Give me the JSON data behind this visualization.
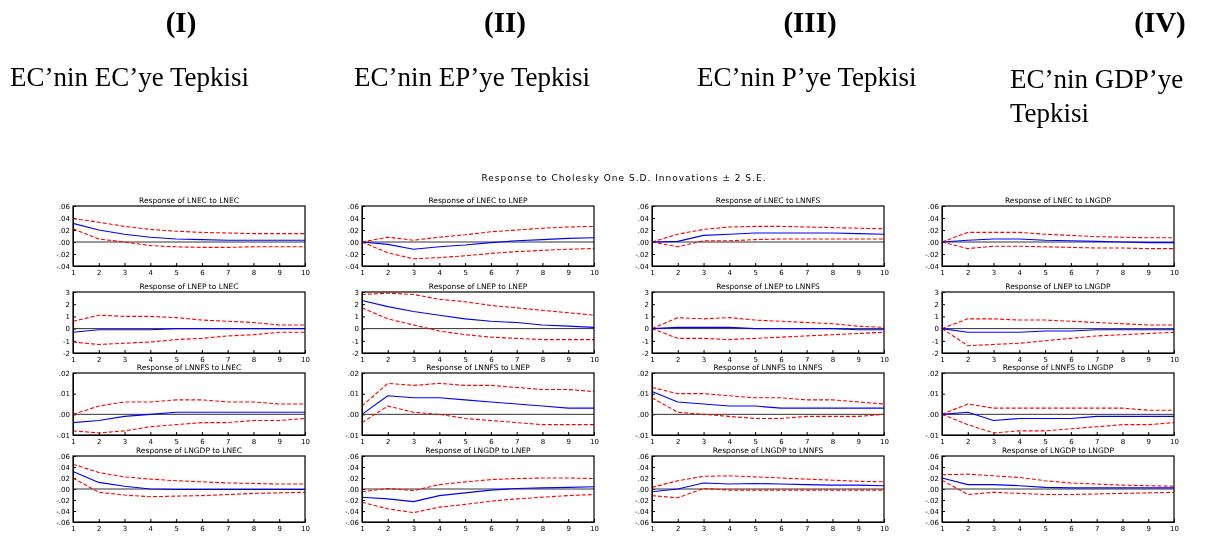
{
  "chart_data": [
    {
      "type": "other",
      "annotations": [
        "(I)",
        "(II)",
        "(III)",
        "(IV)",
        "EC’nin EC’ye Tepkisi",
        "EC’nin EP’ye Tepkisi",
        "EC’nin P’ye Tepkisi",
        "EC’nin GDP’ye Tepkisi",
        "Response to Cholesky One S.D. Innovations ± 2 S.E."
      ]
    },
    {
      "type": "line",
      "title": "Response of LNEC to LNEC",
      "x": [
        1,
        2,
        3,
        4,
        5,
        6,
        7,
        8,
        9,
        10
      ],
      "xlim": [
        1,
        10
      ],
      "xticks": [
        1,
        2,
        3,
        4,
        5,
        6,
        7,
        8,
        9,
        10
      ],
      "ylim": [
        -0.04,
        0.06
      ],
      "yticks": [
        {
          "value": -0.04,
          "label": "-.04"
        },
        {
          "value": -0.02,
          "label": "-.02"
        },
        {
          "value": 0,
          "label": ".00"
        },
        {
          "value": 0.02,
          "label": ".02"
        },
        {
          "value": 0.04,
          "label": ".04"
        },
        {
          "value": 0.06,
          "label": ".06"
        }
      ],
      "ref_lines": [
        {
          "axis": "y",
          "value": 0,
          "color": "#333333"
        }
      ],
      "series": [
        {
          "color": "#0000ff",
          "line_style": "solid",
          "values": [
            0.031,
            0.02,
            0.013,
            0.008,
            0.005,
            0.004,
            0.003,
            0.003,
            0.003,
            0.003
          ]
        },
        {
          "color": "#ff0000",
          "line_style": "dashed",
          "values": [
            0.039,
            0.033,
            0.026,
            0.021,
            0.018,
            0.016,
            0.015,
            0.014,
            0.014,
            0.014
          ]
        },
        {
          "color": "#ff0000",
          "line_style": "dashed",
          "values": [
            0.022,
            0.005,
            0,
            -0.006,
            -0.008,
            -0.009,
            -0.009,
            -0.008,
            -0.008,
            -0.008
          ]
        }
      ]
    },
    {
      "type": "line",
      "title": "Response of LNEC to LNEP",
      "x": [
        1,
        2,
        3,
        4,
        5,
        6,
        7,
        8,
        9,
        10
      ],
      "xlim": [
        1,
        10
      ],
      "xticks": [
        1,
        2,
        3,
        4,
        5,
        6,
        7,
        8,
        9,
        10
      ],
      "ylim": [
        -0.04,
        0.06
      ],
      "yticks": [
        {
          "value": -0.04,
          "label": "-.04"
        },
        {
          "value": -0.02,
          "label": "-.02"
        },
        {
          "value": 0,
          "label": ".00"
        },
        {
          "value": 0.02,
          "label": ".02"
        },
        {
          "value": 0.04,
          "label": ".04"
        },
        {
          "value": 0.06,
          "label": ".06"
        }
      ],
      "ref_lines": [
        {
          "axis": "y",
          "value": 0,
          "color": "#333333"
        }
      ],
      "series": [
        {
          "color": "#0000ff",
          "line_style": "solid",
          "values": [
            0,
            -0.004,
            -0.012,
            -0.008,
            -0.005,
            -0.001,
            0.002,
            0.004,
            0.006,
            0.007
          ]
        },
        {
          "color": "#ff0000",
          "line_style": "dashed",
          "values": [
            0,
            0.008,
            0.003,
            0.008,
            0.012,
            0.017,
            0.02,
            0.023,
            0.025,
            0.026
          ]
        },
        {
          "color": "#ff0000",
          "line_style": "dashed",
          "values": [
            0,
            -0.018,
            -0.028,
            -0.026,
            -0.023,
            -0.019,
            -0.016,
            -0.014,
            -0.012,
            -0.011
          ]
        }
      ]
    },
    {
      "type": "line",
      "title": "Response of LNEC to LNNFS",
      "x": [
        1,
        2,
        3,
        4,
        5,
        6,
        7,
        8,
        9,
        10
      ],
      "xlim": [
        1,
        10
      ],
      "xticks": [
        1,
        2,
        3,
        4,
        5,
        6,
        7,
        8,
        9,
        10
      ],
      "ylim": [
        -0.04,
        0.06
      ],
      "yticks": [
        {
          "value": -0.04,
          "label": "-.04"
        },
        {
          "value": -0.02,
          "label": "-.02"
        },
        {
          "value": 0,
          "label": ".00"
        },
        {
          "value": 0.02,
          "label": ".02"
        },
        {
          "value": 0.04,
          "label": ".04"
        },
        {
          "value": 0.06,
          "label": ".06"
        }
      ],
      "ref_lines": [
        {
          "axis": "y",
          "value": 0,
          "color": "#333333"
        }
      ],
      "series": [
        {
          "color": "#0000ff",
          "line_style": "solid",
          "values": [
            0,
            0.001,
            0.011,
            0.013,
            0.015,
            0.015,
            0.015,
            0.015,
            0.014,
            0.013
          ]
        },
        {
          "color": "#ff0000",
          "line_style": "dashed",
          "values": [
            0,
            0.013,
            0.021,
            0.025,
            0.026,
            0.026,
            0.025,
            0.024,
            0.023,
            0.022
          ]
        },
        {
          "color": "#ff0000",
          "line_style": "dashed",
          "values": [
            0,
            -0.008,
            0.002,
            0.002,
            0.004,
            0.005,
            0.005,
            0.005,
            0.005,
            0.005
          ]
        }
      ]
    },
    {
      "type": "line",
      "title": "Response of LNEC to LNGDP",
      "x": [
        1,
        2,
        3,
        4,
        5,
        6,
        7,
        8,
        9,
        10
      ],
      "xlim": [
        1,
        10
      ],
      "xticks": [
        1,
        2,
        3,
        4,
        5,
        6,
        7,
        8,
        9,
        10
      ],
      "ylim": [
        -0.04,
        0.06
      ],
      "yticks": [
        {
          "value": -0.04,
          "label": "-.04"
        },
        {
          "value": -0.02,
          "label": "-.02"
        },
        {
          "value": 0,
          "label": ".00"
        },
        {
          "value": 0.02,
          "label": ".02"
        },
        {
          "value": 0.04,
          "label": ".04"
        },
        {
          "value": 0.06,
          "label": ".06"
        }
      ],
      "ref_lines": [
        {
          "axis": "y",
          "value": 0,
          "color": "#333333"
        }
      ],
      "series": [
        {
          "color": "#0000ff",
          "line_style": "solid",
          "values": [
            0,
            0.003,
            0.005,
            0.005,
            0.003,
            0.002,
            0.001,
            0,
            -0.001,
            -0.001
          ]
        },
        {
          "color": "#ff0000",
          "line_style": "dashed",
          "values": [
            0,
            0.016,
            0.016,
            0.016,
            0.013,
            0.011,
            0.009,
            0.008,
            0.007,
            0.007
          ]
        },
        {
          "color": "#ff0000",
          "line_style": "dashed",
          "values": [
            0,
            -0.011,
            -0.007,
            -0.007,
            -0.008,
            -0.009,
            -0.01,
            -0.01,
            -0.011,
            -0.011
          ]
        }
      ]
    },
    {
      "type": "line",
      "title": "Response of LNEP to LNEC",
      "x": [
        1,
        2,
        3,
        4,
        5,
        6,
        7,
        8,
        9,
        10
      ],
      "xlim": [
        1,
        10
      ],
      "xticks": [
        1,
        2,
        3,
        4,
        5,
        6,
        7,
        8,
        9,
        10
      ],
      "ylim": [
        -2,
        3
      ],
      "yticks": [
        -2,
        -1,
        0,
        1,
        2,
        3
      ],
      "ref_lines": [
        {
          "axis": "y",
          "value": 0,
          "color": "#333333"
        }
      ],
      "series": [
        {
          "color": "#0000ff",
          "line_style": "solid",
          "values": [
            -0.3,
            -0.1,
            -0.1,
            -0.1,
            0,
            0,
            0,
            0,
            0,
            0
          ]
        },
        {
          "color": "#ff0000",
          "line_style": "dashed",
          "values": [
            0.6,
            1.1,
            1,
            1,
            0.9,
            0.7,
            0.6,
            0.5,
            0.3,
            0.3
          ]
        },
        {
          "color": "#ff0000",
          "line_style": "dashed",
          "values": [
            -1.1,
            -1.3,
            -1.2,
            -1.1,
            -0.9,
            -0.8,
            -0.6,
            -0.5,
            -0.3,
            -0.3
          ]
        }
      ]
    },
    {
      "type": "line",
      "title": "Response of LNEP to LNEP",
      "x": [
        1,
        2,
        3,
        4,
        5,
        6,
        7,
        8,
        9,
        10
      ],
      "xlim": [
        1,
        10
      ],
      "xticks": [
        1,
        2,
        3,
        4,
        5,
        6,
        7,
        8,
        9,
        10
      ],
      "ylim": [
        -2,
        3
      ],
      "yticks": [
        -2,
        -1,
        0,
        1,
        2,
        3
      ],
      "ref_lines": [
        {
          "axis": "y",
          "value": 0,
          "color": "#333333"
        }
      ],
      "series": [
        {
          "color": "#0000ff",
          "line_style": "solid",
          "values": [
            2.3,
            1.8,
            1.4,
            1.1,
            0.8,
            0.6,
            0.5,
            0.3,
            0.2,
            0.1
          ]
        },
        {
          "color": "#ff0000",
          "line_style": "dashed",
          "values": [
            2.8,
            2.9,
            2.8,
            2.4,
            2.2,
            1.9,
            1.7,
            1.5,
            1.3,
            1.1
          ]
        },
        {
          "color": "#ff0000",
          "line_style": "dashed",
          "values": [
            1.7,
            0.8,
            0.3,
            -0.2,
            -0.5,
            -0.7,
            -0.8,
            -0.9,
            -0.9,
            -0.9
          ]
        }
      ]
    },
    {
      "type": "line",
      "title": "Response of LNEP to LNNFS",
      "x": [
        1,
        2,
        3,
        4,
        5,
        6,
        7,
        8,
        9,
        10
      ],
      "xlim": [
        1,
        10
      ],
      "xticks": [
        1,
        2,
        3,
        4,
        5,
        6,
        7,
        8,
        9,
        10
      ],
      "ylim": [
        -2,
        3
      ],
      "yticks": [
        -2,
        -1,
        0,
        1,
        2,
        3
      ],
      "ref_lines": [
        {
          "axis": "y",
          "value": 0,
          "color": "#333333"
        }
      ],
      "series": [
        {
          "color": "#0000ff",
          "line_style": "solid",
          "values": [
            0,
            0.1,
            0.1,
            0.1,
            0,
            0,
            0,
            0,
            -0.1,
            -0.1
          ]
        },
        {
          "color": "#ff0000",
          "line_style": "dashed",
          "values": [
            0,
            0.9,
            0.8,
            0.9,
            0.7,
            0.6,
            0.5,
            0.4,
            0.2,
            0.1
          ]
        },
        {
          "color": "#ff0000",
          "line_style": "dashed",
          "values": [
            0,
            -0.8,
            -0.8,
            -0.9,
            -0.8,
            -0.7,
            -0.6,
            -0.5,
            -0.4,
            -0.3
          ]
        }
      ]
    },
    {
      "type": "line",
      "title": "Response of LNEP to LNGDP",
      "x": [
        1,
        2,
        3,
        4,
        5,
        6,
        7,
        8,
        9,
        10
      ],
      "xlim": [
        1,
        10
      ],
      "xticks": [
        1,
        2,
        3,
        4,
        5,
        6,
        7,
        8,
        9,
        10
      ],
      "ylim": [
        -2,
        3
      ],
      "yticks": [
        -2,
        -1,
        0,
        1,
        2,
        3
      ],
      "ref_lines": [
        {
          "axis": "y",
          "value": 0,
          "color": "#333333"
        }
      ],
      "series": [
        {
          "color": "#0000ff",
          "line_style": "solid",
          "values": [
            0,
            -0.3,
            -0.3,
            -0.3,
            -0.2,
            -0.2,
            -0.1,
            -0.1,
            -0.1,
            -0.1
          ]
        },
        {
          "color": "#ff0000",
          "line_style": "dashed",
          "values": [
            0,
            0.8,
            0.8,
            0.7,
            0.7,
            0.6,
            0.5,
            0.4,
            0.3,
            0.3
          ]
        },
        {
          "color": "#ff0000",
          "line_style": "dashed",
          "values": [
            0,
            -1.4,
            -1.3,
            -1.2,
            -1,
            -0.8,
            -0.6,
            -0.5,
            -0.4,
            -0.3
          ]
        }
      ]
    },
    {
      "type": "line",
      "title": "Response of LNNFS to LNEC",
      "x": [
        1,
        2,
        3,
        4,
        5,
        6,
        7,
        8,
        9,
        10
      ],
      "xlim": [
        1,
        10
      ],
      "xticks": [
        1,
        2,
        3,
        4,
        5,
        6,
        7,
        8,
        9,
        10
      ],
      "ylim": [
        -0.01,
        0.02
      ],
      "yticks": [
        {
          "value": -0.01,
          "label": "-.01"
        },
        {
          "value": 0,
          "label": ".00"
        },
        {
          "value": 0.01,
          "label": ".01"
        },
        {
          "value": 0.02,
          "label": ".02"
        }
      ],
      "ref_lines": [
        {
          "axis": "y",
          "value": 0,
          "color": "#333333"
        }
      ],
      "series": [
        {
          "color": "#0000ff",
          "line_style": "solid",
          "values": [
            -0.004,
            -0.003,
            -0.001,
            0,
            0.001,
            0.001,
            0.001,
            0.001,
            0.001,
            0.001
          ]
        },
        {
          "color": "#ff0000",
          "line_style": "dashed",
          "values": [
            0,
            0.004,
            0.006,
            0.006,
            0.007,
            0.007,
            0.006,
            0.006,
            0.005,
            0.005
          ]
        },
        {
          "color": "#ff0000",
          "line_style": "dashed",
          "values": [
            -0.008,
            -0.009,
            -0.008,
            -0.006,
            -0.005,
            -0.004,
            -0.004,
            -0.003,
            -0.003,
            -0.002
          ]
        }
      ]
    },
    {
      "type": "line",
      "title": "Response of LNNFS to LNEP",
      "x": [
        1,
        2,
        3,
        4,
        5,
        6,
        7,
        8,
        9,
        10
      ],
      "xlim": [
        1,
        10
      ],
      "xticks": [
        1,
        2,
        3,
        4,
        5,
        6,
        7,
        8,
        9,
        10
      ],
      "ylim": [
        -0.01,
        0.02
      ],
      "yticks": [
        {
          "value": -0.01,
          "label": "-.01"
        },
        {
          "value": 0,
          "label": ".00"
        },
        {
          "value": 0.01,
          "label": ".01"
        },
        {
          "value": 0.02,
          "label": ".02"
        }
      ],
      "ref_lines": [
        {
          "axis": "y",
          "value": 0,
          "color": "#333333"
        }
      ],
      "series": [
        {
          "color": "#0000ff",
          "line_style": "solid",
          "values": [
            0,
            0.009,
            0.008,
            0.008,
            0.007,
            0.006,
            0.005,
            0.004,
            0.003,
            0.003
          ]
        },
        {
          "color": "#ff0000",
          "line_style": "dashed",
          "values": [
            0.004,
            0.015,
            0.014,
            0.015,
            0.014,
            0.014,
            0.013,
            0.012,
            0.012,
            0.011
          ]
        },
        {
          "color": "#ff0000",
          "line_style": "dashed",
          "values": [
            -0.004,
            0.004,
            0.001,
            0,
            -0.002,
            -0.003,
            -0.004,
            -0.005,
            -0.005,
            -0.005
          ]
        }
      ]
    },
    {
      "type": "line",
      "title": "Response of LNNFS to LNNFS",
      "x": [
        1,
        2,
        3,
        4,
        5,
        6,
        7,
        8,
        9,
        10
      ],
      "xlim": [
        1,
        10
      ],
      "xticks": [
        1,
        2,
        3,
        4,
        5,
        6,
        7,
        8,
        9,
        10
      ],
      "ylim": [
        -0.01,
        0.02
      ],
      "yticks": [
        {
          "value": -0.01,
          "label": "-.01"
        },
        {
          "value": 0,
          "label": ".00"
        },
        {
          "value": 0.01,
          "label": ".01"
        },
        {
          "value": 0.02,
          "label": ".02"
        }
      ],
      "ref_lines": [
        {
          "axis": "y",
          "value": 0,
          "color": "#333333"
        }
      ],
      "series": [
        {
          "color": "#0000ff",
          "line_style": "solid",
          "values": [
            0.011,
            0.006,
            0.005,
            0.004,
            0.004,
            0.003,
            0.003,
            0.003,
            0.003,
            0.003
          ]
        },
        {
          "color": "#ff0000",
          "line_style": "dashed",
          "values": [
            0.013,
            0.01,
            0.01,
            0.009,
            0.008,
            0.008,
            0.007,
            0.007,
            0.006,
            0.005
          ]
        },
        {
          "color": "#ff0000",
          "line_style": "dashed",
          "values": [
            0.008,
            0.001,
            0,
            -0.001,
            -0.002,
            -0.002,
            -0.001,
            -0.001,
            -0.001,
            0
          ]
        }
      ]
    },
    {
      "type": "line",
      "title": "Response of LNNFS to LNGDP",
      "x": [
        1,
        2,
        3,
        4,
        5,
        6,
        7,
        8,
        9,
        10
      ],
      "xlim": [
        1,
        10
      ],
      "xticks": [
        1,
        2,
        3,
        4,
        5,
        6,
        7,
        8,
        9,
        10
      ],
      "ylim": [
        -0.01,
        0.02
      ],
      "yticks": [
        {
          "value": -0.01,
          "label": "-.01"
        },
        {
          "value": 0,
          "label": ".00"
        },
        {
          "value": 0.01,
          "label": ".01"
        },
        {
          "value": 0.02,
          "label": ".02"
        }
      ],
      "ref_lines": [
        {
          "axis": "y",
          "value": 0,
          "color": "#333333"
        }
      ],
      "series": [
        {
          "color": "#0000ff",
          "line_style": "solid",
          "values": [
            0,
            0.001,
            -0.003,
            -0.002,
            -0.002,
            -0.002,
            -0.001,
            -0.001,
            -0.001,
            -0.001
          ]
        },
        {
          "color": "#ff0000",
          "line_style": "dashed",
          "values": [
            0,
            0.005,
            0.003,
            0.003,
            0.003,
            0.003,
            0.003,
            0.003,
            0.002,
            0.002
          ]
        },
        {
          "color": "#ff0000",
          "line_style": "dashed",
          "values": [
            0,
            -0.005,
            -0.009,
            -0.008,
            -0.008,
            -0.007,
            -0.006,
            -0.005,
            -0.005,
            -0.004
          ]
        }
      ]
    },
    {
      "type": "line",
      "title": "Response of LNGDP to LNEC",
      "x": [
        1,
        2,
        3,
        4,
        5,
        6,
        7,
        8,
        9,
        10
      ],
      "xlim": [
        1,
        10
      ],
      "xticks": [
        1,
        2,
        3,
        4,
        5,
        6,
        7,
        8,
        9,
        10
      ],
      "ylim": [
        -0.06,
        0.06
      ],
      "yticks": [
        {
          "value": -0.06,
          "label": "-.06"
        },
        {
          "value": -0.04,
          "label": "-.04"
        },
        {
          "value": -0.02,
          "label": "-.02"
        },
        {
          "value": 0,
          "label": ".00"
        },
        {
          "value": 0.02,
          "label": ".02"
        },
        {
          "value": 0.04,
          "label": ".04"
        },
        {
          "value": 0.06,
          "label": ".06"
        }
      ],
      "ref_lines": [
        {
          "axis": "y",
          "value": 0,
          "color": "#333333"
        }
      ],
      "series": [
        {
          "color": "#0000ff",
          "line_style": "solid",
          "values": [
            0.032,
            0.012,
            0.005,
            0,
            -0.001,
            -0.001,
            -0.001,
            -0.001,
            -0.001,
            -0.001
          ]
        },
        {
          "color": "#ff0000",
          "line_style": "dashed",
          "values": [
            0.045,
            0.03,
            0.022,
            0.018,
            0.015,
            0.013,
            0.011,
            0.01,
            0.009,
            0.009
          ]
        },
        {
          "color": "#ff0000",
          "line_style": "dashed",
          "values": [
            0.02,
            -0.006,
            -0.011,
            -0.014,
            -0.013,
            -0.012,
            -0.01,
            -0.008,
            -0.007,
            -0.006
          ]
        }
      ]
    },
    {
      "type": "line",
      "title": "Response of LNGDP to LNEP",
      "x": [
        1,
        2,
        3,
        4,
        5,
        6,
        7,
        8,
        9,
        10
      ],
      "xlim": [
        1,
        10
      ],
      "xticks": [
        1,
        2,
        3,
        4,
        5,
        6,
        7,
        8,
        9,
        10
      ],
      "ylim": [
        -0.06,
        0.06
      ],
      "yticks": [
        {
          "value": -0.06,
          "label": "-.06"
        },
        {
          "value": -0.04,
          "label": "-.04"
        },
        {
          "value": -0.02,
          "label": "-.02"
        },
        {
          "value": 0,
          "label": ".00"
        },
        {
          "value": 0.02,
          "label": ".02"
        },
        {
          "value": 0.04,
          "label": ".04"
        },
        {
          "value": 0.06,
          "label": ".06"
        }
      ],
      "ref_lines": [
        {
          "axis": "y",
          "value": 0,
          "color": "#333333"
        }
      ],
      "series": [
        {
          "color": "#0000ff",
          "line_style": "solid",
          "values": [
            -0.015,
            -0.018,
            -0.023,
            -0.012,
            -0.007,
            -0.002,
            0.001,
            0.002,
            0.003,
            0.004
          ]
        },
        {
          "color": "#ff0000",
          "line_style": "dashed",
          "values": [
            -0.005,
            0.001,
            -0.003,
            0.008,
            0.013,
            0.017,
            0.019,
            0.02,
            0.02,
            0.019
          ]
        },
        {
          "color": "#ff0000",
          "line_style": "dashed",
          "values": [
            -0.024,
            -0.036,
            -0.043,
            -0.033,
            -0.028,
            -0.022,
            -0.018,
            -0.015,
            -0.012,
            -0.01
          ]
        }
      ]
    },
    {
      "type": "line",
      "title": "Response of LNGDP to LNNFS",
      "x": [
        1,
        2,
        3,
        4,
        5,
        6,
        7,
        8,
        9,
        10
      ],
      "xlim": [
        1,
        10
      ],
      "xticks": [
        1,
        2,
        3,
        4,
        5,
        6,
        7,
        8,
        9,
        10
      ],
      "ylim": [
        -0.06,
        0.06
      ],
      "yticks": [
        {
          "value": -0.06,
          "label": "-.06"
        },
        {
          "value": -0.04,
          "label": "-.04"
        },
        {
          "value": -0.02,
          "label": "-.02"
        },
        {
          "value": 0,
          "label": ".00"
        },
        {
          "value": 0.02,
          "label": ".02"
        },
        {
          "value": 0.04,
          "label": ".04"
        },
        {
          "value": 0.06,
          "label": ".06"
        }
      ],
      "ref_lines": [
        {
          "axis": "y",
          "value": 0,
          "color": "#333333"
        }
      ],
      "series": [
        {
          "color": "#0000ff",
          "line_style": "solid",
          "values": [
            -0.005,
            0,
            0.011,
            0.009,
            0.01,
            0.009,
            0.008,
            0.007,
            0.007,
            0.006
          ]
        },
        {
          "color": "#ff0000",
          "line_style": "dashed",
          "values": [
            0.003,
            0.015,
            0.023,
            0.024,
            0.022,
            0.02,
            0.018,
            0.016,
            0.014,
            0.013
          ]
        },
        {
          "color": "#ff0000",
          "line_style": "dashed",
          "values": [
            -0.012,
            -0.016,
            0.001,
            -0.002,
            -0.002,
            -0.002,
            -0.002,
            -0.002,
            -0.002,
            -0.002
          ]
        }
      ]
    },
    {
      "type": "line",
      "title": "Response of LNGDP to LNGDP",
      "x": [
        1,
        2,
        3,
        4,
        5,
        6,
        7,
        8,
        9,
        10
      ],
      "xlim": [
        1,
        10
      ],
      "xticks": [
        1,
        2,
        3,
        4,
        5,
        6,
        7,
        8,
        9,
        10
      ],
      "ylim": [
        -0.06,
        0.06
      ],
      "yticks": [
        {
          "value": -0.06,
          "label": "-.06"
        },
        {
          "value": -0.04,
          "label": "-.04"
        },
        {
          "value": -0.02,
          "label": "-.02"
        },
        {
          "value": 0,
          "label": ".00"
        },
        {
          "value": 0.02,
          "label": ".02"
        },
        {
          "value": 0.04,
          "label": ".04"
        },
        {
          "value": 0.06,
          "label": ".06"
        }
      ],
      "ref_lines": [
        {
          "axis": "y",
          "value": 0,
          "color": "#333333"
        }
      ],
      "series": [
        {
          "color": "#0000ff",
          "line_style": "solid",
          "values": [
            0.02,
            0.008,
            0.008,
            0.006,
            0.003,
            0.002,
            0.002,
            0.002,
            0.002,
            0.002
          ]
        },
        {
          "color": "#ff0000",
          "line_style": "dashed",
          "values": [
            0.026,
            0.027,
            0.024,
            0.021,
            0.015,
            0.011,
            0.009,
            0.007,
            0.006,
            0.005
          ]
        },
        {
          "color": "#ff0000",
          "line_style": "dashed",
          "values": [
            0.016,
            -0.01,
            -0.006,
            -0.008,
            -0.01,
            -0.01,
            -0.009,
            -0.008,
            -0.007,
            -0.006
          ]
        }
      ]
    }
  ]
}
